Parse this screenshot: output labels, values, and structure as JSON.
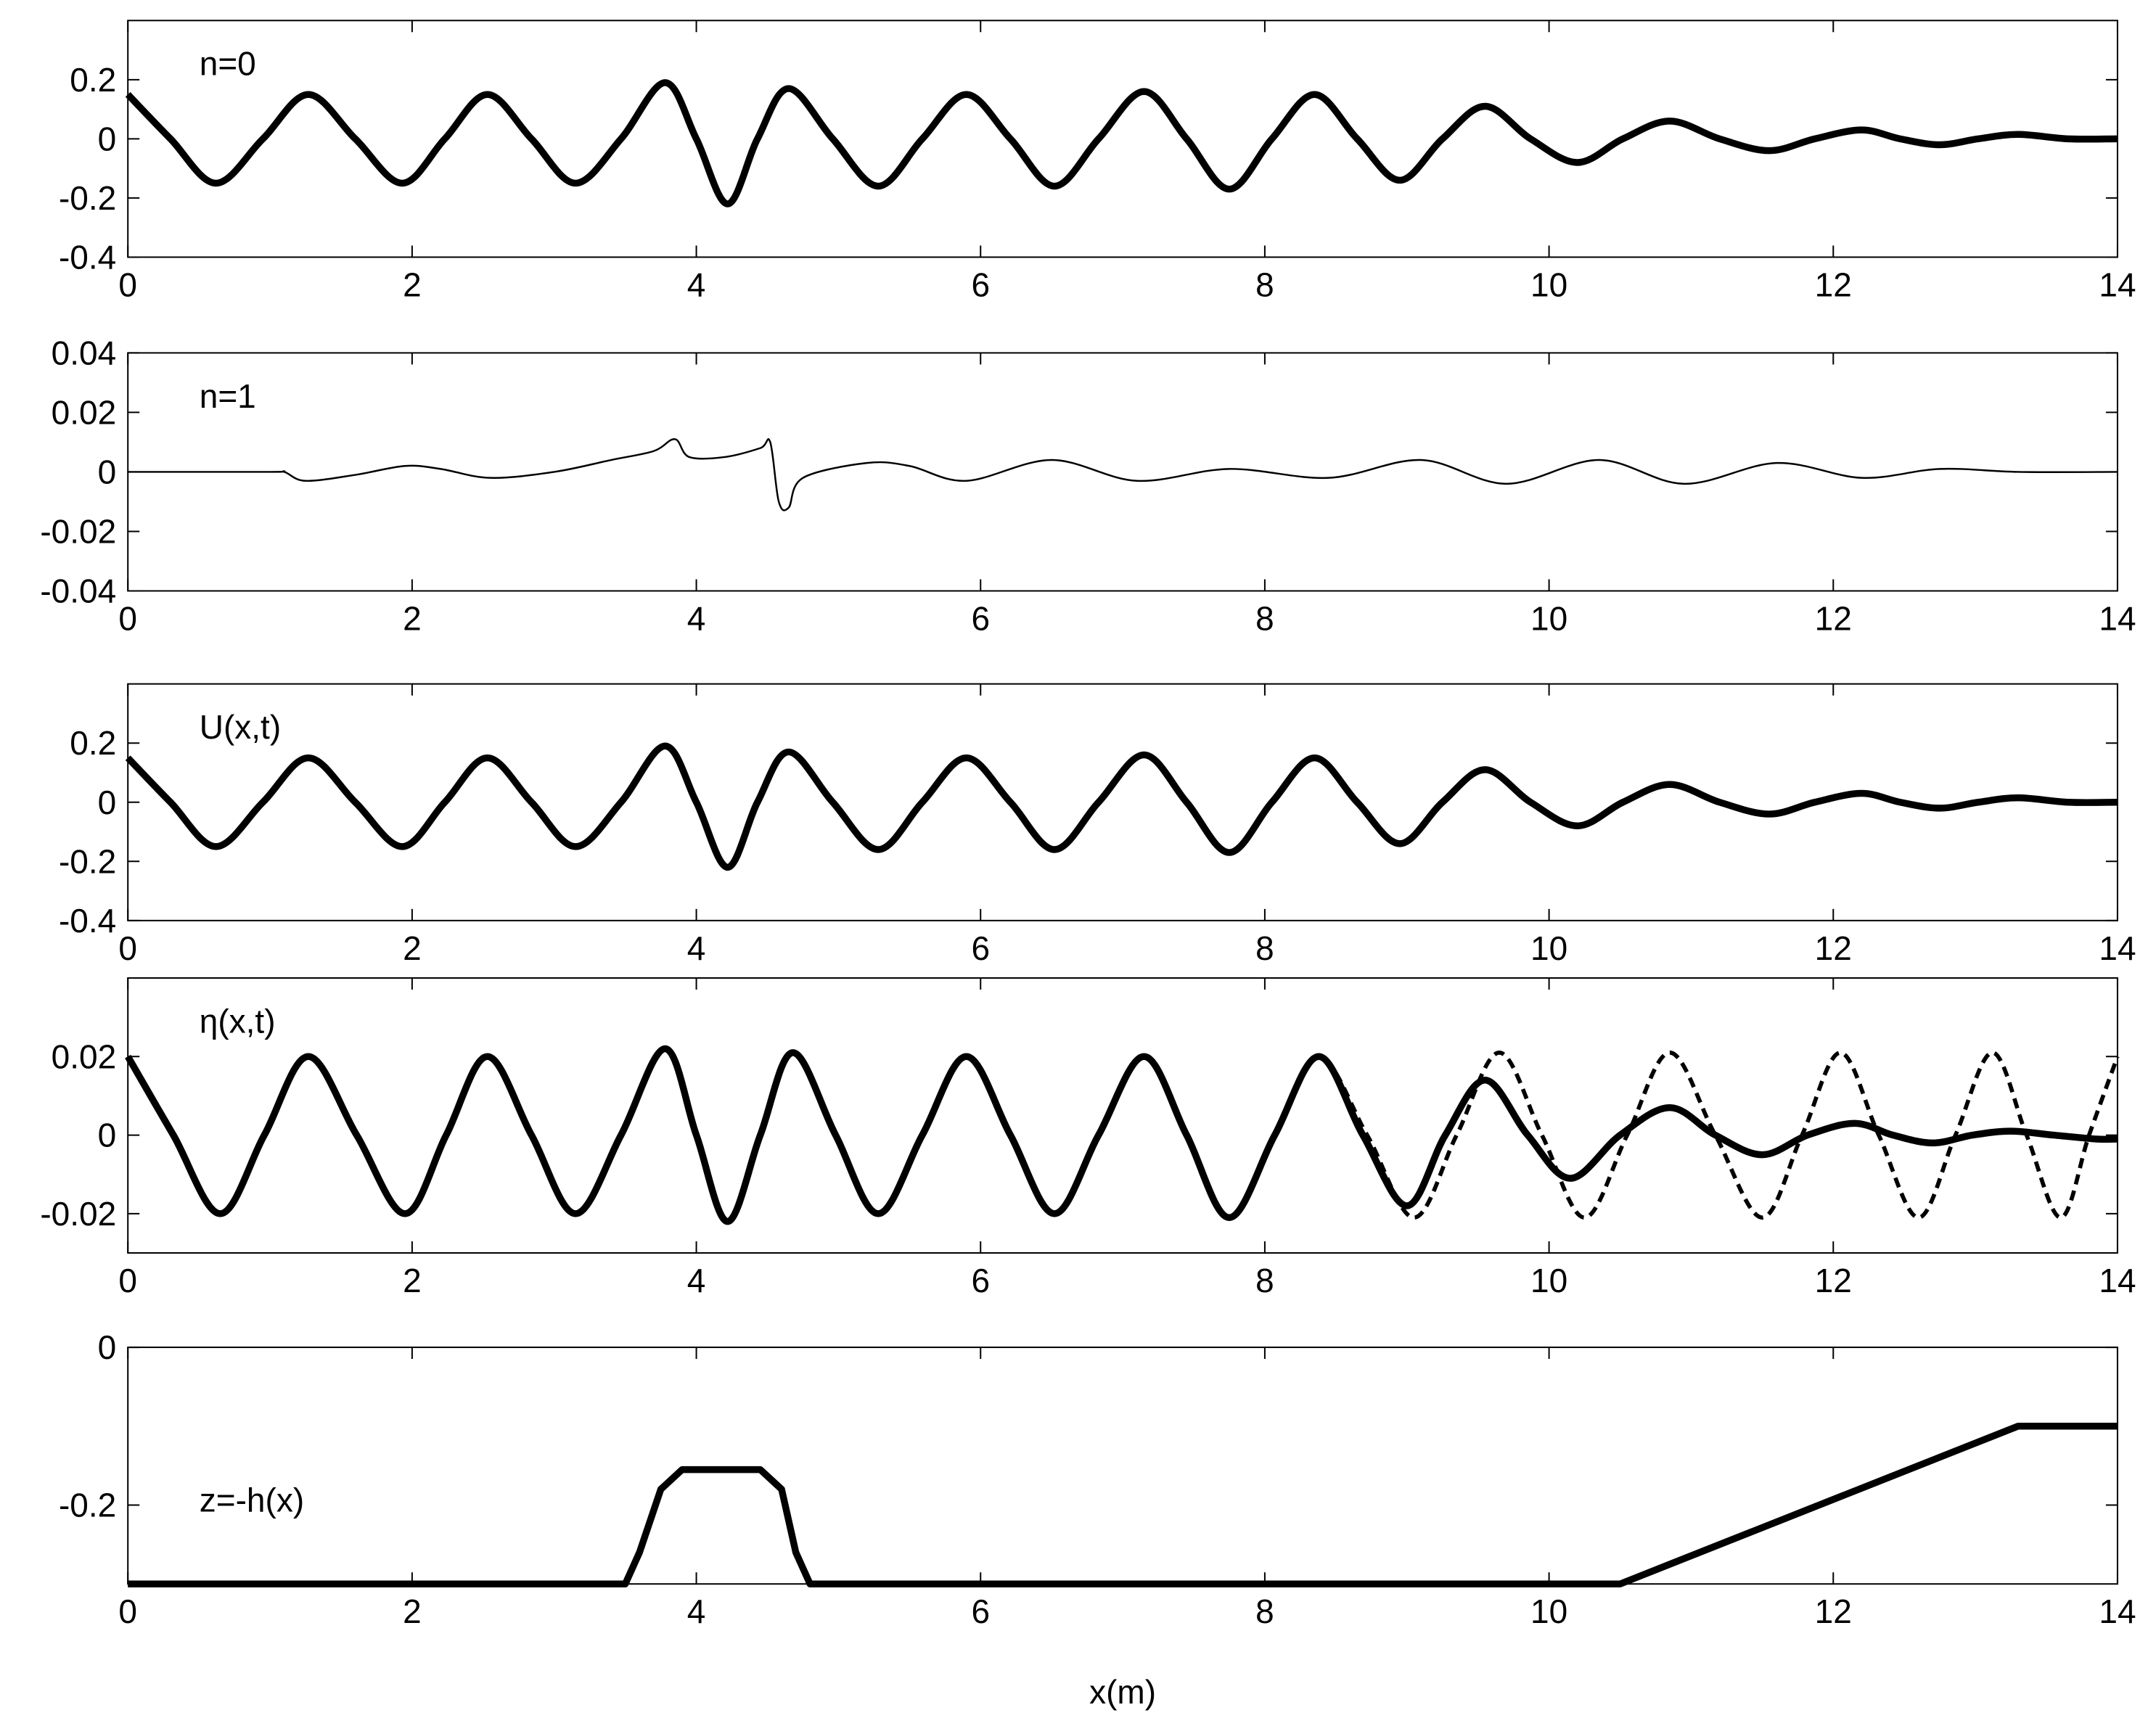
{
  "chart_data": [
    {
      "type": "line",
      "annotation": "n=0",
      "xlim": [
        0,
        14
      ],
      "xticks": [
        0,
        2,
        4,
        6,
        8,
        10,
        12,
        14
      ],
      "ylim": [
        -0.4,
        0.4
      ],
      "yticks": [
        -0.4,
        -0.2,
        0,
        0.2
      ],
      "series": [
        {
          "color": "#000000",
          "linewidth": 5,
          "linestyle": "solid",
          "x": [
            0,
            0.3,
            0.62,
            0.95,
            1.27,
            1.6,
            1.93,
            2.23,
            2.53,
            2.84,
            3.15,
            3.47,
            3.78,
            4.0,
            4.22,
            4.43,
            4.65,
            4.96,
            5.28,
            5.59,
            5.9,
            6.21,
            6.52,
            6.83,
            7.15,
            7.45,
            7.75,
            8.05,
            8.35,
            8.65,
            8.95,
            9.25,
            9.55,
            9.87,
            10.2,
            10.52,
            10.85,
            11.2,
            11.55,
            11.87,
            12.2,
            12.47,
            12.75,
            13.02,
            13.3,
            13.65,
            14
          ],
          "values": [
            0.15,
            0,
            -0.15,
            0,
            0.15,
            0,
            -0.15,
            0,
            0.15,
            0,
            -0.15,
            0,
            0.19,
            0,
            -0.22,
            0,
            0.17,
            0,
            -0.16,
            0,
            0.15,
            0,
            -0.16,
            0,
            0.16,
            0,
            -0.17,
            0,
            0.15,
            0,
            -0.14,
            0,
            0.11,
            0,
            -0.08,
            0,
            0.06,
            0,
            -0.04,
            0,
            0.03,
            0,
            -0.02,
            0,
            0.015,
            0,
            0
          ]
        }
      ]
    },
    {
      "type": "line",
      "annotation": "n=1",
      "xlim": [
        0,
        14
      ],
      "xticks": [
        0,
        2,
        4,
        6,
        8,
        10,
        12,
        14
      ],
      "ylim": [
        -0.04,
        0.04
      ],
      "yticks": [
        -0.04,
        -0.02,
        0,
        0.02,
        0.04
      ],
      "series": [
        {
          "color": "#000000",
          "linewidth": 1.3,
          "linestyle": "solid",
          "x": [
            0,
            1,
            1.1,
            1.25,
            1.6,
            1.95,
            2.2,
            2.55,
            3,
            3.4,
            3.7,
            3.85,
            3.95,
            4.2,
            4.45,
            4.52,
            4.58,
            4.65,
            4.75,
            5.2,
            5.5,
            5.9,
            6.5,
            7.1,
            7.75,
            8.45,
            9.1,
            9.7,
            10.35,
            10.95,
            11.6,
            12.2,
            12.75,
            13.3,
            14
          ],
          "values": [
            0,
            0,
            0,
            -0.003,
            -0.001,
            0.002,
            0.001,
            -0.002,
            0,
            0.004,
            0.007,
            0.011,
            0.005,
            0.005,
            0.008,
            0.01,
            -0.01,
            -0.012,
            -0.002,
            0.003,
            0.002,
            -0.003,
            0.004,
            -0.003,
            0.001,
            -0.002,
            0.004,
            -0.004,
            0.004,
            -0.004,
            0.003,
            -0.002,
            0.001,
            0,
            0
          ]
        }
      ]
    },
    {
      "type": "line",
      "annotation": "U(x,t)",
      "xlim": [
        0,
        14
      ],
      "xticks": [
        0,
        2,
        4,
        6,
        8,
        10,
        12,
        14
      ],
      "ylim": [
        -0.4,
        0.4
      ],
      "yticks": [
        -0.4,
        -0.2,
        0,
        0.2
      ],
      "series": [
        {
          "color": "#000000",
          "linewidth": 5,
          "linestyle": "solid",
          "x": [
            0,
            0.3,
            0.62,
            0.95,
            1.27,
            1.6,
            1.93,
            2.23,
            2.53,
            2.84,
            3.15,
            3.47,
            3.78,
            4.0,
            4.22,
            4.43,
            4.65,
            4.96,
            5.28,
            5.59,
            5.9,
            6.21,
            6.52,
            6.83,
            7.15,
            7.45,
            7.75,
            8.05,
            8.35,
            8.65,
            8.95,
            9.25,
            9.55,
            9.87,
            10.2,
            10.52,
            10.85,
            11.2,
            11.55,
            11.87,
            12.2,
            12.47,
            12.75,
            13.02,
            13.3,
            13.65,
            14
          ],
          "values": [
            0.15,
            0,
            -0.15,
            0,
            0.15,
            0,
            -0.15,
            0,
            0.15,
            0,
            -0.15,
            0,
            0.19,
            0,
            -0.22,
            0,
            0.17,
            0,
            -0.16,
            0,
            0.15,
            0,
            -0.16,
            0,
            0.16,
            0,
            -0.17,
            0,
            0.15,
            0,
            -0.14,
            0,
            0.11,
            0,
            -0.08,
            0,
            0.06,
            0,
            -0.04,
            0,
            0.03,
            0,
            -0.02,
            0,
            0.015,
            0,
            0
          ]
        }
      ]
    },
    {
      "type": "line",
      "annotation": "η(x,t)",
      "xlim": [
        0,
        14
      ],
      "xticks": [
        0,
        2,
        4,
        6,
        8,
        10,
        12,
        14
      ],
      "ylim": [
        -0.03,
        0.04
      ],
      "yticks": [
        -0.02,
        0,
        0.02
      ],
      "series": [
        {
          "color": "#000000",
          "linewidth": 5,
          "linestyle": "solid",
          "x": [
            0,
            0.32,
            0.65,
            0.96,
            1.27,
            1.61,
            1.95,
            2.24,
            2.53,
            2.84,
            3.15,
            3.47,
            3.78,
            4.0,
            4.22,
            4.45,
            4.68,
            4.98,
            5.28,
            5.59,
            5.9,
            6.21,
            6.52,
            6.83,
            7.15,
            7.45,
            7.75,
            8.07,
            8.38,
            8.69,
            9.0,
            9.27,
            9.55,
            9.85,
            10.15,
            10.5,
            10.85,
            11.17,
            11.5,
            11.82,
            12.15,
            12.42,
            12.7,
            12.98,
            13.25,
            13.55,
            13.85,
            14
          ],
          "values": [
            0.02,
            0,
            -0.02,
            0,
            0.02,
            0,
            -0.02,
            0,
            0.02,
            0,
            -0.02,
            0,
            0.022,
            0,
            -0.022,
            0,
            0.021,
            0,
            -0.02,
            0,
            0.02,
            0,
            -0.02,
            0,
            0.02,
            0,
            -0.021,
            0,
            0.02,
            0,
            -0.018,
            0,
            0.014,
            0,
            -0.011,
            0,
            0.007,
            0,
            -0.005,
            0,
            0.003,
            0,
            -0.002,
            0,
            0.001,
            0,
            -0.001,
            -0.001
          ]
        },
        {
          "color": "#000000",
          "linewidth": 3,
          "linestyle": "dashed",
          "x": [
            0,
            0.32,
            0.65,
            0.96,
            1.27,
            1.61,
            1.95,
            2.24,
            2.53,
            2.84,
            3.15,
            3.47,
            3.78,
            4.0,
            4.22,
            4.45,
            4.68,
            4.98,
            5.28,
            5.59,
            5.9,
            6.21,
            6.52,
            6.83,
            7.15,
            7.45,
            7.75,
            8.07,
            8.38,
            8.72,
            9.05,
            9.35,
            9.65,
            9.95,
            10.25,
            10.55,
            10.85,
            11.17,
            11.5,
            11.78,
            12.05,
            12.32,
            12.6,
            12.86,
            13.12,
            13.36,
            13.6,
            13.8,
            14
          ],
          "values": [
            0.02,
            0,
            -0.02,
            0,
            0.02,
            0,
            -0.02,
            0,
            0.02,
            0,
            -0.02,
            0,
            0.022,
            0,
            -0.022,
            0,
            0.021,
            0,
            -0.02,
            0,
            0.02,
            0,
            -0.02,
            0,
            0.02,
            0,
            -0.021,
            0,
            0.02,
            0,
            -0.021,
            0,
            0.021,
            0,
            -0.021,
            0,
            0.021,
            0,
            -0.021,
            0,
            0.021,
            0,
            -0.021,
            0,
            0.021,
            0,
            -0.021,
            0,
            0.02
          ]
        }
      ]
    },
    {
      "type": "line",
      "annotation": "z=-h(x)",
      "xlabel": "x(m)",
      "xlim": [
        0,
        14
      ],
      "xticks": [
        0,
        2,
        4,
        6,
        8,
        10,
        12,
        14
      ],
      "ylim": [
        -0.3,
        0
      ],
      "yticks": [
        -0.2,
        0
      ],
      "series": [
        {
          "color": "#000000",
          "linewidth": 5,
          "linestyle": "solid",
          "x": [
            0,
            3.5,
            3.6,
            3.75,
            3.9,
            4.45,
            4.6,
            4.7,
            4.8,
            10.5,
            13.3,
            14
          ],
          "values": [
            -0.3,
            -0.3,
            -0.26,
            -0.18,
            -0.155,
            -0.155,
            -0.18,
            -0.26,
            -0.3,
            -0.3,
            -0.1,
            -0.1
          ]
        }
      ]
    }
  ]
}
